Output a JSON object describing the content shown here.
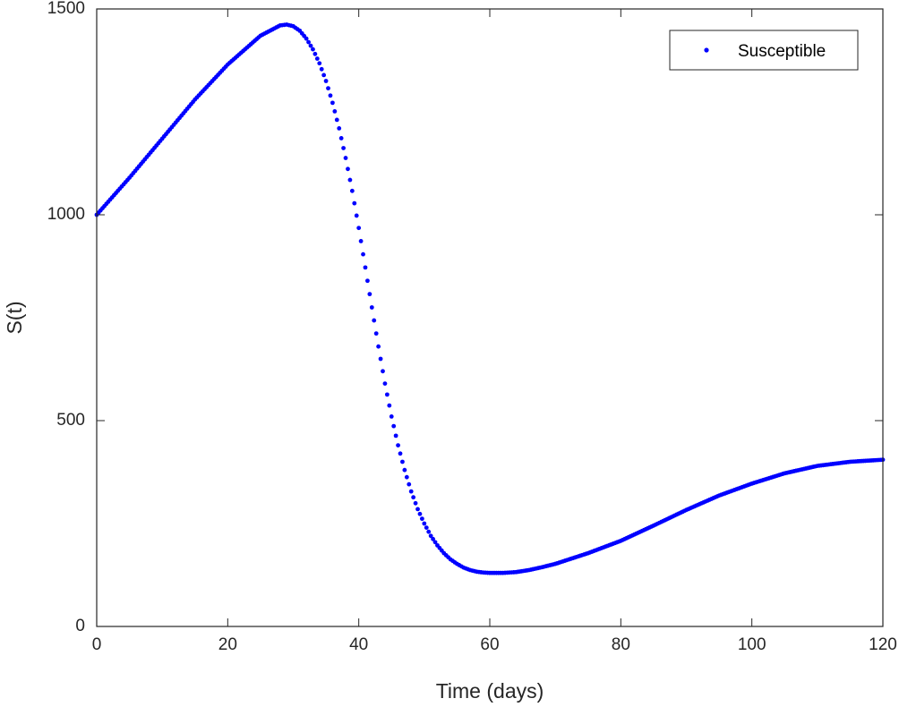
{
  "chart_data": {
    "type": "scatter",
    "xlabel": "Time (days)",
    "ylabel": "S(t)",
    "xlim": [
      0,
      120
    ],
    "ylim": [
      0,
      1500
    ],
    "xticks": [
      0,
      20,
      40,
      60,
      80,
      100,
      120
    ],
    "yticks": [
      0,
      500,
      1000,
      1500
    ],
    "grid": false,
    "legend_position": "top-right",
    "series": [
      {
        "name": "Susceptible",
        "color": "#0000ff",
        "marker": "dot",
        "x": [
          0,
          5,
          10,
          15,
          20,
          25,
          28,
          29,
          30,
          31,
          32,
          33,
          34,
          35,
          36,
          37,
          38,
          39,
          40,
          41,
          42,
          43,
          44,
          45,
          46,
          47,
          48,
          49,
          50,
          51,
          52,
          53,
          54,
          55,
          56,
          57,
          58,
          59,
          60,
          61,
          62,
          63,
          64,
          66,
          68,
          70,
          75,
          80,
          85,
          90,
          95,
          100,
          105,
          110,
          115,
          120
        ],
        "y": [
          1000,
          1090,
          1185,
          1280,
          1365,
          1435,
          1460,
          1462,
          1458,
          1447,
          1428,
          1402,
          1368,
          1325,
          1272,
          1210,
          1138,
          1058,
          968,
          872,
          775,
          680,
          590,
          510,
          440,
          380,
          328,
          285,
          250,
          220,
          197,
          178,
          163,
          152,
          143,
          137,
          133,
          131,
          130,
          130,
          130,
          131,
          132,
          137,
          144,
          152,
          178,
          208,
          245,
          283,
          318,
          347,
          372,
          390,
          400,
          405
        ]
      }
    ]
  }
}
